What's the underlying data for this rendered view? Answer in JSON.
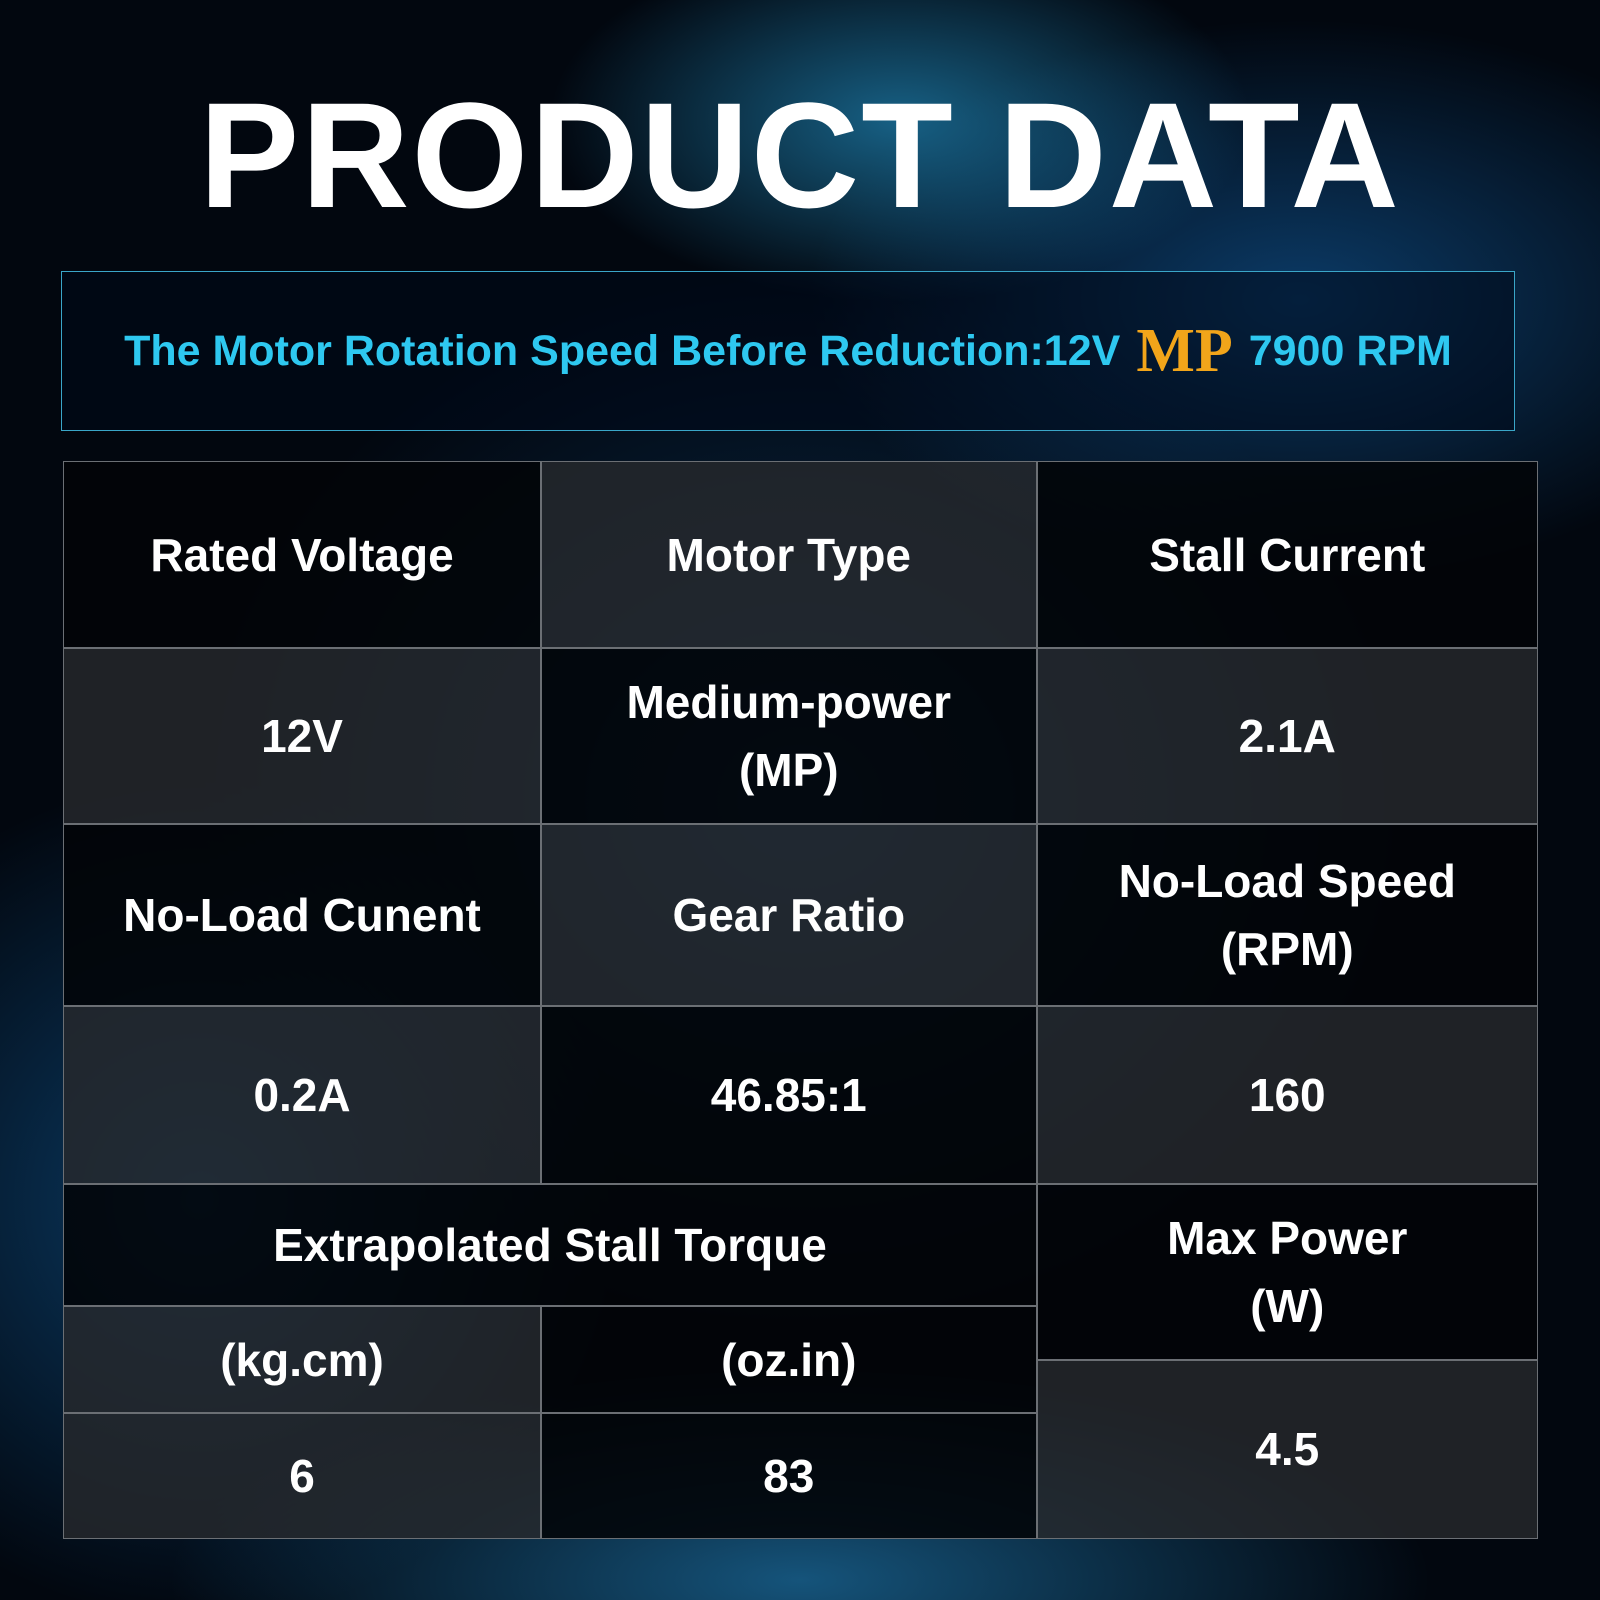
{
  "header": {
    "title": "PRODUCT DATA"
  },
  "banner": {
    "text_before": "The Motor Rotation Speed Before Reduction:12V",
    "highlight": "MP",
    "text_after": "7900 RPM"
  },
  "table": {
    "cells": [
      {
        "lines": [
          "Rated Voltage"
        ]
      },
      {
        "lines": [
          "Motor Type"
        ]
      },
      {
        "lines": [
          "Stall Current"
        ]
      },
      {
        "lines": [
          "12V"
        ]
      },
      {
        "lines": [
          "Medium-power",
          "(MP)"
        ]
      },
      {
        "lines": [
          "2.1A"
        ]
      },
      {
        "lines": [
          "No-Load Cunent"
        ]
      },
      {
        "lines": [
          "Gear Ratio"
        ]
      },
      {
        "lines": [
          "No-Load Speed",
          "(RPM)"
        ]
      },
      {
        "lines": [
          "0.2A"
        ]
      },
      {
        "lines": [
          "46.85:1"
        ]
      },
      {
        "lines": [
          "160"
        ]
      },
      {
        "lines": [
          "Extrapolated Stall Torque"
        ]
      },
      {
        "lines": [
          "Max Power",
          "(W)"
        ]
      },
      {
        "lines": [
          "(kg.cm)"
        ]
      },
      {
        "lines": [
          "(oz.in)"
        ]
      },
      {
        "lines": [
          "6"
        ]
      },
      {
        "lines": [
          "83"
        ]
      },
      {
        "lines": [
          "4.5"
        ]
      }
    ]
  }
}
